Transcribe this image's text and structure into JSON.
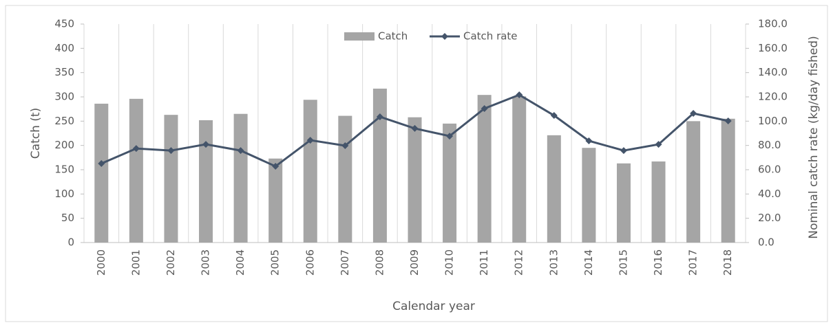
{
  "chart_data": {
    "type": "bar-line",
    "categories": [
      "2000",
      "2001",
      "2002",
      "2003",
      "2004",
      "2005",
      "2006",
      "2007",
      "2008",
      "2009",
      "2010",
      "2011",
      "2012",
      "2013",
      "2014",
      "2015",
      "2016",
      "2017",
      "2018"
    ],
    "series": [
      {
        "name": "Catch",
        "color": "#a5a5a5",
        "type": "bar",
        "values": [
          286,
          296,
          263,
          252,
          265,
          173,
          294,
          261,
          317,
          258,
          245,
          304,
          301,
          221,
          195,
          163,
          167,
          250,
          255
        ]
      },
      {
        "name": "Catch rate",
        "color": "#44546a",
        "type": "line",
        "axis": "y2",
        "values": [
          65.1,
          77.5,
          75.8,
          80.9,
          75.8,
          62.8,
          84.3,
          79.8,
          103.6,
          94.0,
          87.7,
          110.4,
          121.7,
          104.7,
          83.8,
          75.8,
          80.9,
          106.4,
          100.2
        ]
      }
    ],
    "xlabel": "Calendar year",
    "ylabel": "Catch (t)",
    "y2label": "Nominal catch rate (kg/day fished)",
    "ylim": [
      0,
      450
    ],
    "yticks": [
      0,
      50,
      100,
      150,
      200,
      250,
      300,
      350,
      400,
      450
    ],
    "y2lim": [
      0,
      180
    ],
    "y2ticks": [
      {
        "value": 0,
        "label": "0.0"
      },
      {
        "value": 20,
        "label": "20.0"
      },
      {
        "value": 40,
        "label": "40.0"
      },
      {
        "value": 60,
        "label": "60.0"
      },
      {
        "value": 80,
        "label": "80.0"
      },
      {
        "value": 100,
        "label": "100.0"
      },
      {
        "value": 120,
        "label": "120.0"
      },
      {
        "value": 140,
        "label": "140.0"
      },
      {
        "value": 160,
        "label": "160.0"
      },
      {
        "value": 180,
        "label": "180.0"
      }
    ],
    "legend": "top"
  }
}
